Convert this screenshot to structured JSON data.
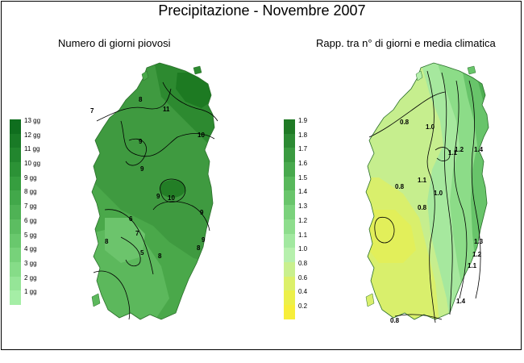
{
  "title": "Precipitazione - Novembre 2007",
  "left_panel": {
    "subtitle": "Numero di giorni piovosi",
    "legend": [
      {
        "label": "13 gg",
        "color": "#0f6e1e"
      },
      {
        "label": "12 gg",
        "color": "#197a26"
      },
      {
        "label": "11 gg",
        "color": "#22862e"
      },
      {
        "label": "10 gg",
        "color": "#2c9236"
      },
      {
        "label": "9 gg",
        "color": "#369e3f"
      },
      {
        "label": "8 gg",
        "color": "#42a84a"
      },
      {
        "label": "7 gg",
        "color": "#4fb255"
      },
      {
        "label": "6 gg",
        "color": "#5cbd61"
      },
      {
        "label": "5 gg",
        "color": "#69c86d"
      },
      {
        "label": "4 gg",
        "color": "#77d27a"
      },
      {
        "label": "3 gg",
        "color": "#86dc88"
      },
      {
        "label": "2 gg",
        "color": "#95e597"
      },
      {
        "label": "1 gg",
        "color": "#a5eea6"
      }
    ],
    "contour_labels": [
      "7",
      "8",
      "11",
      "10",
      "9",
      "9",
      "9",
      "10",
      "9",
      "9",
      "6",
      "7",
      "5",
      "8",
      "8",
      "8"
    ]
  },
  "right_panel": {
    "subtitle": "Rapp. tra n° di giorni e media climatica",
    "legend": [
      {
        "label": "1.9",
        "color": "#1f7a25"
      },
      {
        "label": "1.8",
        "color": "#2c8a33"
      },
      {
        "label": "1.7",
        "color": "#3a9a40"
      },
      {
        "label": "1.6",
        "color": "#48a94d"
      },
      {
        "label": "1.5",
        "color": "#58b85b"
      },
      {
        "label": "1.4",
        "color": "#69c56b"
      },
      {
        "label": "1.3",
        "color": "#7bd27c"
      },
      {
        "label": "1.2",
        "color": "#8edd8d"
      },
      {
        "label": "1.1",
        "color": "#a2e8a0"
      },
      {
        "label": "1.0",
        "color": "#b6f0ad"
      },
      {
        "label": "0.8",
        "color": "#c9f08e"
      },
      {
        "label": "0.6",
        "color": "#dcf06a"
      },
      {
        "label": "0.4",
        "color": "#ecf04a"
      },
      {
        "label": "0.2",
        "color": "#f7ee3a"
      }
    ],
    "contour_labels": [
      "0.8",
      "1.0",
      "1.1",
      "1.2",
      "1.4",
      "0.8",
      "1.0",
      "0.8",
      "1.1",
      "1.3",
      "1.2",
      "1.1",
      "1.4",
      "0.8"
    ]
  }
}
